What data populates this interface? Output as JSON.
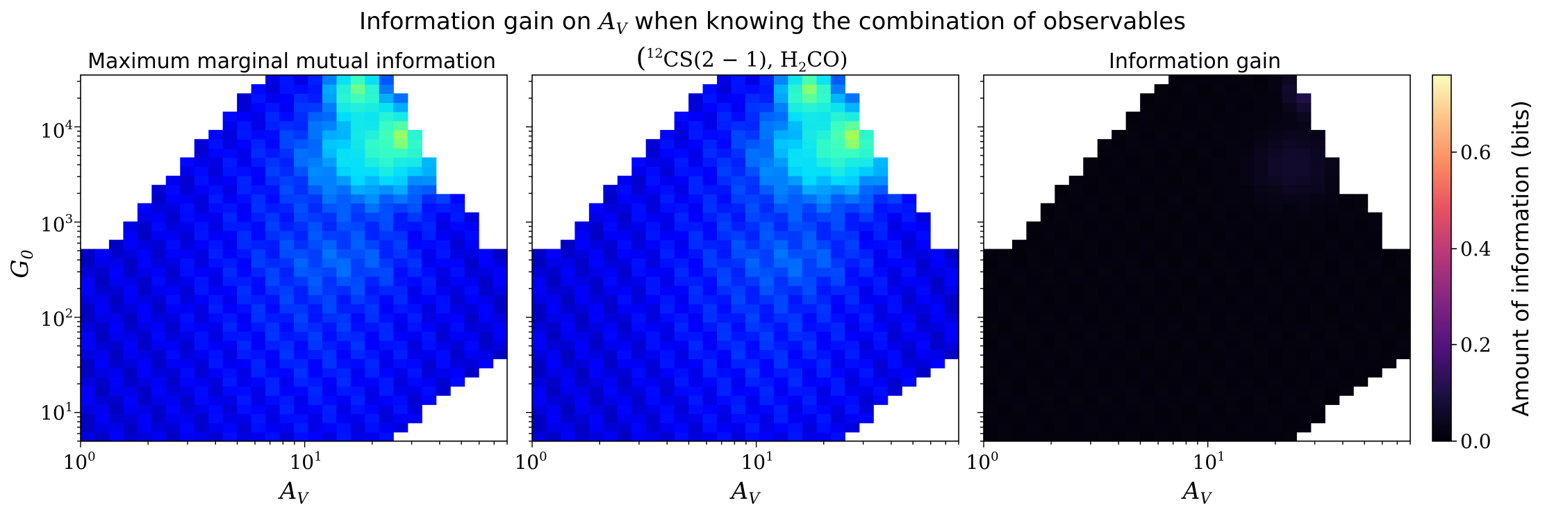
{
  "figure": {
    "title_prefix": "Information gain on ",
    "title_var": "A",
    "title_var_sub": "V",
    "title_suffix": " when knowing the combination of observables"
  },
  "colors": {
    "axes": "#000000",
    "background": "#ffffff",
    "colormap_panels_1_2": "jet",
    "colormap_panel_3": "magma"
  },
  "chart_data": [
    {
      "type": "heatmap",
      "title": "Maximum marginal mutual information",
      "xlabel": "A_V",
      "ylabel": "G_0",
      "x_scale": "log",
      "y_scale": "log",
      "xlim": [
        1,
        80
      ],
      "ylim": [
        5,
        35000
      ],
      "xticks": [
        "10^0",
        "10^1"
      ],
      "yticks": [
        "10^1",
        "10^2",
        "10^3",
        "10^4"
      ],
      "colormap": "jet",
      "value_range": [
        0,
        0.75
      ],
      "features": {
        "low_av_value": 0.06,
        "mid_band_value": 0.12,
        "hotspot": {
          "A_V": 17,
          "G_0": 25000,
          "value": 0.55
        },
        "secondary_peak": {
          "A_V": 27,
          "G_0": 9000,
          "value": 0.45
        },
        "plateau": {
          "A_V_range": [
            12,
            50
          ],
          "G_0_range": [
            2000,
            20000
          ],
          "value": 0.33
        }
      }
    },
    {
      "type": "heatmap",
      "title_open": "(",
      "title_sup": "12",
      "title_cs": "CS",
      "title_trans": "(2 − 1), H",
      "title_sub": "2",
      "title_co": "CO)",
      "xlabel": "A_V",
      "x_scale": "log",
      "y_scale": "log",
      "xlim": [
        1,
        80
      ],
      "ylim": [
        5,
        35000
      ],
      "xticks": [
        "10^0",
        "10^1"
      ],
      "colormap": "jet",
      "value_range": [
        0,
        0.75
      ],
      "features": {
        "low_av_value": 0.06,
        "mid_band_value": 0.12,
        "hotspot": {
          "A_V": 17,
          "G_0": 25000,
          "value": 0.57
        },
        "secondary_peak": {
          "A_V": 27,
          "G_0": 9000,
          "value": 0.46
        },
        "plateau": {
          "A_V_range": [
            12,
            50
          ],
          "G_0_range": [
            2000,
            20000
          ],
          "value": 0.33
        }
      }
    },
    {
      "type": "heatmap",
      "title": "Information gain",
      "xlabel": "A_V",
      "x_scale": "log",
      "y_scale": "log",
      "xlim": [
        1,
        80
      ],
      "ylim": [
        5,
        35000
      ],
      "xticks": [
        "10^0",
        "10^1"
      ],
      "colormap": "magma",
      "value_range": [
        0,
        0.75
      ],
      "features": {
        "background_value": 0.01,
        "faint_patch": {
          "A_V": 28,
          "G_0": 25000,
          "value": 0.12
        },
        "faint_patch_2": {
          "A_V": 24,
          "G_0": 4000,
          "value": 0.05
        }
      }
    }
  ],
  "colorbar": {
    "label": "Amount of information (bits)",
    "colormap": "magma",
    "range": [
      0,
      0.76
    ],
    "ticks": [
      "0.0",
      "0.2",
      "0.4",
      "0.6"
    ]
  }
}
